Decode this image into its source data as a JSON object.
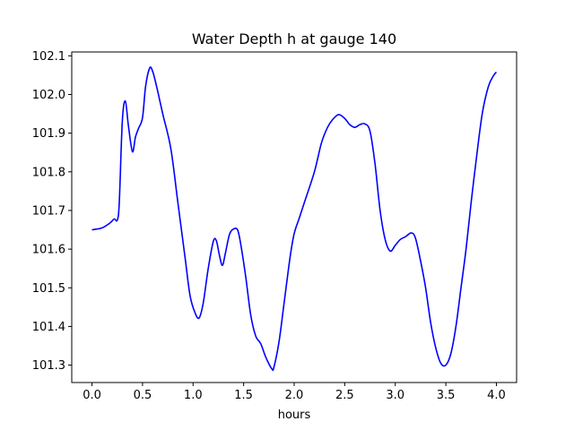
{
  "chart_data": {
    "type": "line",
    "title": "Water Depth h at gauge 140",
    "xlabel": "hours",
    "ylabel": "",
    "xlim": [
      -0.2,
      4.2
    ],
    "ylim": [
      101.255,
      102.11
    ],
    "grid": false,
    "xticks": [
      0.0,
      0.5,
      1.0,
      1.5,
      2.0,
      2.5,
      3.0,
      3.5,
      4.0
    ],
    "xtick_labels": [
      "0.0",
      "0.5",
      "1.0",
      "1.5",
      "2.0",
      "2.5",
      "3.0",
      "3.5",
      "4.0"
    ],
    "yticks": [
      101.3,
      101.4,
      101.5,
      101.6,
      101.7,
      101.8,
      101.9,
      102.0,
      102.1
    ],
    "ytick_labels": [
      "101.3",
      "101.4",
      "101.5",
      "101.6",
      "101.7",
      "101.8",
      "101.9",
      "102.0",
      "102.1"
    ],
    "series": [
      {
        "name": "h",
        "color": "#0000ff",
        "x": [
          0.0,
          0.1,
          0.18,
          0.22,
          0.25,
          0.27,
          0.3,
          0.33,
          0.36,
          0.4,
          0.43,
          0.46,
          0.5,
          0.53,
          0.57,
          0.6,
          0.64,
          0.7,
          0.78,
          0.85,
          0.92,
          0.97,
          1.02,
          1.06,
          1.1,
          1.15,
          1.2,
          1.23,
          1.26,
          1.29,
          1.32,
          1.36,
          1.4,
          1.44,
          1.47,
          1.52,
          1.57,
          1.62,
          1.67,
          1.72,
          1.78,
          1.8,
          1.85,
          1.9,
          1.96,
          2.0,
          2.05,
          2.1,
          2.2,
          2.27,
          2.33,
          2.38,
          2.44,
          2.5,
          2.55,
          2.6,
          2.65,
          2.7,
          2.75,
          2.8,
          2.85,
          2.9,
          2.95,
          3.0,
          3.05,
          3.1,
          3.16,
          3.2,
          3.25,
          3.3,
          3.35,
          3.4,
          3.45,
          3.5,
          3.55,
          3.6,
          3.65,
          3.7,
          3.75,
          3.8,
          3.86,
          3.92,
          3.97,
          4.0
        ],
        "values": [
          101.65,
          101.655,
          101.668,
          101.678,
          101.675,
          101.72,
          101.93,
          101.983,
          101.92,
          101.852,
          101.89,
          101.912,
          101.94,
          102.02,
          102.068,
          102.06,
          102.02,
          101.95,
          101.86,
          101.72,
          101.58,
          101.48,
          101.435,
          101.422,
          101.46,
          101.55,
          101.62,
          101.622,
          101.585,
          101.558,
          101.59,
          101.638,
          101.652,
          101.65,
          101.615,
          101.53,
          101.43,
          101.375,
          101.355,
          101.32,
          101.29,
          101.295,
          101.36,
          101.46,
          101.58,
          101.64,
          101.68,
          101.72,
          101.8,
          101.875,
          101.915,
          101.935,
          101.948,
          101.938,
          101.922,
          101.915,
          101.922,
          101.924,
          101.905,
          101.82,
          101.7,
          101.625,
          101.595,
          101.61,
          101.625,
          101.632,
          101.642,
          101.628,
          101.57,
          101.5,
          101.41,
          101.345,
          101.305,
          101.3,
          101.33,
          101.4,
          101.5,
          101.6,
          101.72,
          101.83,
          101.95,
          102.02,
          102.048,
          102.058
        ]
      }
    ]
  }
}
